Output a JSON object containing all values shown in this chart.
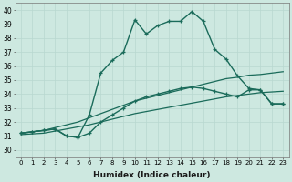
{
  "xlabel": "Humidex (Indice chaleur)",
  "ylabel": "",
  "xlim": [
    -0.5,
    23.5
  ],
  "ylim": [
    29.5,
    40.5
  ],
  "xticks": [
    0,
    1,
    2,
    3,
    4,
    5,
    6,
    7,
    8,
    9,
    10,
    11,
    12,
    13,
    14,
    15,
    16,
    17,
    18,
    19,
    20,
    21,
    22,
    23
  ],
  "yticks": [
    30,
    31,
    32,
    33,
    34,
    35,
    36,
    37,
    38,
    39,
    40
  ],
  "bg_color": "#cde8e0",
  "line_color": "#1a6b5a",
  "grid_color": "#b8d8d0",
  "series": [
    {
      "x": [
        0,
        1,
        2,
        3,
        4,
        5,
        6,
        7,
        8,
        9,
        10,
        11,
        12,
        13,
        14,
        15,
        16,
        17,
        18,
        19,
        20,
        21,
        22,
        23
      ],
      "y": [
        31.1,
        31.15,
        31.2,
        31.35,
        31.5,
        31.65,
        31.8,
        32.0,
        32.2,
        32.4,
        32.6,
        32.75,
        32.9,
        33.05,
        33.2,
        33.35,
        33.5,
        33.65,
        33.8,
        33.9,
        34.0,
        34.1,
        34.15,
        34.2
      ],
      "marker": false,
      "linestyle": "-",
      "lw": 0.9
    },
    {
      "x": [
        0,
        1,
        2,
        3,
        4,
        5,
        6,
        7,
        8,
        9,
        10,
        11,
        12,
        13,
        14,
        15,
        16,
        17,
        18,
        19,
        20,
        21,
        22,
        23
      ],
      "y": [
        31.2,
        31.3,
        31.4,
        31.6,
        31.8,
        32.0,
        32.3,
        32.6,
        32.9,
        33.2,
        33.5,
        33.7,
        33.9,
        34.1,
        34.3,
        34.5,
        34.7,
        34.9,
        35.1,
        35.2,
        35.35,
        35.4,
        35.5,
        35.6
      ],
      "marker": false,
      "linestyle": "-",
      "lw": 0.9
    },
    {
      "x": [
        0,
        1,
        2,
        3,
        4,
        5,
        6,
        7,
        8,
        9,
        10,
        11,
        12,
        13,
        14,
        15,
        16,
        17,
        18,
        19,
        20,
        21,
        22,
        23
      ],
      "y": [
        31.2,
        31.3,
        31.4,
        31.5,
        31.0,
        30.9,
        31.2,
        32.0,
        32.5,
        33.0,
        33.5,
        33.8,
        34.0,
        34.2,
        34.4,
        34.5,
        34.4,
        34.2,
        34.0,
        33.8,
        34.3,
        34.3,
        33.3,
        33.3
      ],
      "marker": true,
      "linestyle": "-",
      "lw": 1.0
    },
    {
      "x": [
        0,
        1,
        2,
        3,
        4,
        5,
        6,
        7,
        8,
        9,
        10,
        11,
        12,
        13,
        14,
        15,
        16,
        17,
        18,
        19,
        20,
        21,
        22,
        23
      ],
      "y": [
        31.2,
        31.3,
        31.4,
        31.5,
        31.0,
        30.9,
        32.5,
        35.5,
        36.4,
        37.0,
        39.3,
        38.3,
        38.9,
        39.2,
        39.2,
        39.9,
        39.2,
        37.2,
        36.5,
        35.3,
        34.4,
        34.3,
        33.3,
        33.3
      ],
      "marker": true,
      "linestyle": "-",
      "lw": 1.0
    }
  ]
}
